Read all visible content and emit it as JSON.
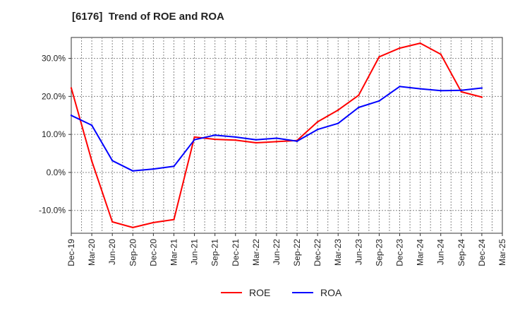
{
  "chart_data": {
    "type": "line",
    "title": "[6176]  Trend of ROE and ROA",
    "x": [
      "Dec-19",
      "Mar-20",
      "Jun-20",
      "Sep-20",
      "Dec-20",
      "Mar-21",
      "Jun-21",
      "Sep-21",
      "Dec-21",
      "Mar-22",
      "Jun-22",
      "Sep-22",
      "Dec-22",
      "Mar-23",
      "Jun-23",
      "Sep-23",
      "Dec-23",
      "Mar-24",
      "Jun-24",
      "Sep-24",
      "Dec-24",
      "Mar-25"
    ],
    "y_ticks": [
      -10,
      0,
      10,
      20,
      30
    ],
    "y_tick_labels": [
      "-10.0%",
      "0.0%",
      "10.0%",
      "20.0%",
      "30.0%"
    ],
    "ylim": [
      -16,
      35.5
    ],
    "grid": true,
    "legend_position": "bottom-center",
    "series": [
      {
        "name": "ROE",
        "color": "#ff0000",
        "values": [
          22.2,
          3.0,
          -13.0,
          -14.5,
          -13.2,
          -12.4,
          9.3,
          8.7,
          8.5,
          7.8,
          8.1,
          8.4,
          13.3,
          16.4,
          20.3,
          30.4,
          32.7,
          34.0,
          31.1,
          21.2,
          19.8,
          null
        ]
      },
      {
        "name": "ROA",
        "color": "#0000ff",
        "values": [
          15.0,
          12.4,
          3.1,
          0.4,
          0.9,
          1.6,
          8.6,
          9.8,
          9.3,
          8.6,
          9.0,
          8.2,
          11.3,
          12.9,
          17.1,
          18.8,
          22.6,
          22.0,
          21.5,
          21.6,
          22.2,
          null
        ]
      }
    ]
  }
}
